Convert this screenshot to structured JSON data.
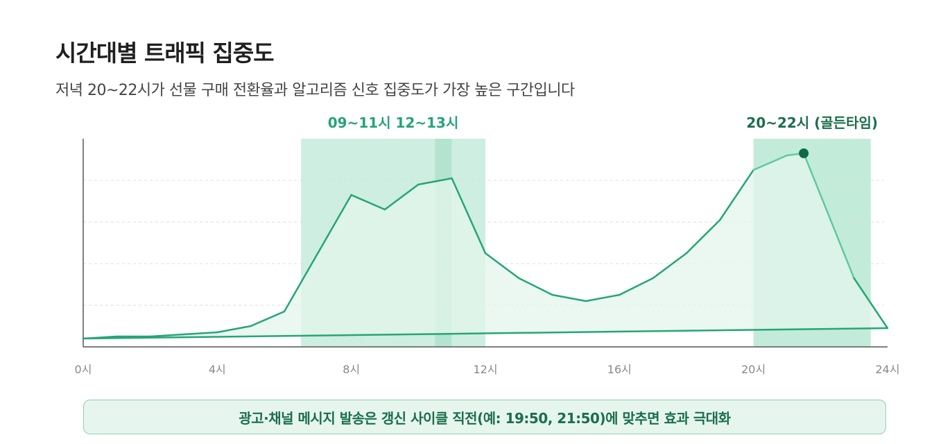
{
  "header": {
    "title": "시간대별 트래픽 집중도",
    "subtitle": "저녁 20~22시가 선물 구매 전환율과 알고리즘 신호 집중도가 가장 높은 구간입니다"
  },
  "chart_data": {
    "type": "area",
    "x_ticks": [
      0,
      4,
      8,
      12,
      16,
      20,
      24
    ],
    "x_tick_labels": [
      "0시",
      "4시",
      "8시",
      "12시",
      "16시",
      "20시",
      "24시"
    ],
    "xlim": [
      0,
      24
    ],
    "ylim": [
      0,
      100
    ],
    "grid": true,
    "series": [
      {
        "x": [
          0,
          1,
          2,
          3,
          4,
          5,
          6,
          7,
          8,
          9,
          10,
          11,
          12,
          13,
          14,
          15,
          16,
          17,
          18,
          19,
          20,
          21,
          21.5,
          22,
          23,
          24
        ],
        "values": [
          4,
          5,
          5,
          6,
          7,
          10,
          17,
          45,
          73,
          66,
          78,
          81,
          45,
          33,
          25,
          22,
          25,
          33,
          45,
          61,
          85,
          92,
          93,
          73,
          33,
          9
        ]
      }
    ],
    "baseline": {
      "x": [
        0,
        24
      ],
      "values": [
        4,
        9
      ]
    },
    "peak_marker": {
      "x": 21.5,
      "value": 93
    },
    "highlight_bands": [
      {
        "start": 6.5,
        "end": 10.5,
        "color": "#cdeee0"
      },
      {
        "start": 10.5,
        "end": 11.0,
        "color": "#b3e4d0"
      },
      {
        "start": 11.0,
        "end": 12.0,
        "color": "#cdeee0"
      },
      {
        "start": 20.0,
        "end": 23.5,
        "color": "#c3ebda"
      }
    ],
    "annotations": [
      {
        "text": "09~11시 12~13시",
        "x": 9.25,
        "color": "#26a37a"
      },
      {
        "text": "20~22시 (골든타임)",
        "x": 21.75,
        "color": "#1b6e4c"
      }
    ],
    "colors": {
      "line": "#25a578",
      "line_highlight": "#5ec9a1",
      "area": "#e3f5ec",
      "marker": "#0e6a48",
      "axis": "#555555",
      "grid": "#dddddd",
      "tick_label": "#888888"
    }
  },
  "footer": {
    "note": "광고·채널 메시지 발송은 갱신 사이클 직전(예: 19:50, 21:50)에 맞추면 효과 극대화"
  }
}
